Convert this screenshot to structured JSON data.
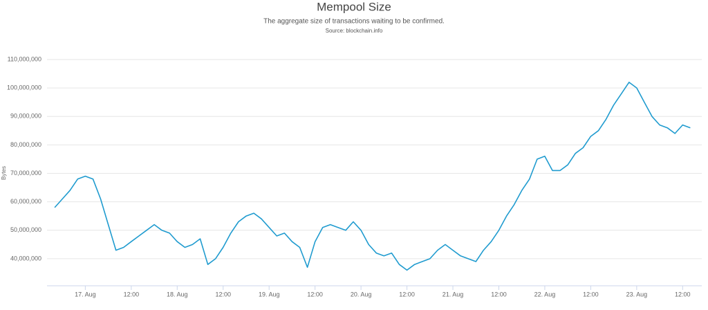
{
  "chart_data": {
    "type": "line",
    "title": "Mempool Size",
    "subtitle": "The aggregate size of transactions waiting to be confirmed.",
    "source": "Source: blockchain.info",
    "ylabel": "Bytes",
    "color": "#1f9bcf",
    "grid": true,
    "x": [
      "16. Aug 16:00",
      "16. Aug 18:00",
      "16. Aug 20:00",
      "16. Aug 22:00",
      "17. Aug 00:00",
      "17. Aug 02:00",
      "17. Aug 04:00",
      "17. Aug 06:00",
      "17. Aug 08:00",
      "17. Aug 10:00",
      "17. Aug 12:00",
      "17. Aug 14:00",
      "17. Aug 16:00",
      "17. Aug 18:00",
      "17. Aug 20:00",
      "17. Aug 22:00",
      "18. Aug 00:00",
      "18. Aug 02:00",
      "18. Aug 04:00",
      "18. Aug 06:00",
      "18. Aug 08:00",
      "18. Aug 10:00",
      "18. Aug 12:00",
      "18. Aug 14:00",
      "18. Aug 16:00",
      "18. Aug 18:00",
      "18. Aug 20:00",
      "18. Aug 22:00",
      "19. Aug 00:00",
      "19. Aug 02:00",
      "19. Aug 04:00",
      "19. Aug 06:00",
      "19. Aug 08:00",
      "19. Aug 10:00",
      "19. Aug 12:00",
      "19. Aug 14:00",
      "19. Aug 16:00",
      "19. Aug 18:00",
      "19. Aug 20:00",
      "19. Aug 22:00",
      "20. Aug 00:00",
      "20. Aug 02:00",
      "20. Aug 04:00",
      "20. Aug 06:00",
      "20. Aug 08:00",
      "20. Aug 10:00",
      "20. Aug 12:00",
      "20. Aug 14:00",
      "20. Aug 16:00",
      "20. Aug 18:00",
      "20. Aug 20:00",
      "20. Aug 22:00",
      "21. Aug 00:00",
      "21. Aug 02:00",
      "21. Aug 04:00",
      "21. Aug 06:00",
      "21. Aug 08:00",
      "21. Aug 10:00",
      "21. Aug 12:00",
      "21. Aug 14:00",
      "21. Aug 16:00",
      "21. Aug 18:00",
      "21. Aug 20:00",
      "21. Aug 22:00",
      "22. Aug 00:00",
      "22. Aug 02:00",
      "22. Aug 04:00",
      "22. Aug 06:00",
      "22. Aug 08:00",
      "22. Aug 10:00",
      "22. Aug 12:00",
      "22. Aug 14:00",
      "22. Aug 16:00",
      "22. Aug 18:00",
      "22. Aug 20:00",
      "22. Aug 22:00",
      "23. Aug 00:00",
      "23. Aug 02:00",
      "23. Aug 04:00",
      "23. Aug 06:00",
      "23. Aug 08:00",
      "23. Aug 10:00",
      "23. Aug 12:00",
      "23. Aug 14:00"
    ],
    "values": [
      58000000,
      61000000,
      64000000,
      68000000,
      69000000,
      68000000,
      61000000,
      52000000,
      43000000,
      44000000,
      46000000,
      48000000,
      50000000,
      52000000,
      50000000,
      49000000,
      46000000,
      44000000,
      45000000,
      47000000,
      38000000,
      40000000,
      44000000,
      49000000,
      53000000,
      55000000,
      56000000,
      54000000,
      51000000,
      48000000,
      49000000,
      46000000,
      44000000,
      37000000,
      46000000,
      51000000,
      52000000,
      51000000,
      50000000,
      53000000,
      50000000,
      45000000,
      42000000,
      41000000,
      42000000,
      38000000,
      36000000,
      38000000,
      39000000,
      40000000,
      43000000,
      45000000,
      43000000,
      41000000,
      40000000,
      39000000,
      43000000,
      46000000,
      50000000,
      55000000,
      59000000,
      64000000,
      68000000,
      75000000,
      76000000,
      71000000,
      71000000,
      73000000,
      77000000,
      79000000,
      83000000,
      85000000,
      89000000,
      94000000,
      98000000,
      102000000,
      100000000,
      95000000,
      90000000,
      87000000,
      86000000,
      84000000,
      87000000,
      86000000
    ],
    "xlim": [
      "16. Aug 14:00",
      "23. Aug 17:00"
    ],
    "xticks": [
      {
        "value": "17. Aug 00:00",
        "label": "17. Aug"
      },
      {
        "value": "17. Aug 12:00",
        "label": "12:00"
      },
      {
        "value": "18. Aug 00:00",
        "label": "18. Aug"
      },
      {
        "value": "18. Aug 12:00",
        "label": "12:00"
      },
      {
        "value": "19. Aug 00:00",
        "label": "19. Aug"
      },
      {
        "value": "19. Aug 12:00",
        "label": "12:00"
      },
      {
        "value": "20. Aug 00:00",
        "label": "20. Aug"
      },
      {
        "value": "20. Aug 12:00",
        "label": "12:00"
      },
      {
        "value": "21. Aug 00:00",
        "label": "21. Aug"
      },
      {
        "value": "21. Aug 12:00",
        "label": "12:00"
      },
      {
        "value": "22. Aug 00:00",
        "label": "22. Aug"
      },
      {
        "value": "22. Aug 12:00",
        "label": "12:00"
      },
      {
        "value": "23. Aug 00:00",
        "label": "23. Aug"
      },
      {
        "value": "23. Aug 12:00",
        "label": "12:00"
      }
    ],
    "ylim": [
      30500000,
      110000000
    ],
    "yticks": [
      {
        "value": 40000000,
        "label": "40,000,000"
      },
      {
        "value": 50000000,
        "label": "50,000,000"
      },
      {
        "value": 60000000,
        "label": "60,000,000"
      },
      {
        "value": 70000000,
        "label": "70,000,000"
      },
      {
        "value": 80000000,
        "label": "80,000,000"
      },
      {
        "value": 90000000,
        "label": "90,000,000"
      },
      {
        "value": 100000000,
        "label": "100,000,000"
      },
      {
        "value": 110000000,
        "label": "110,000,000"
      }
    ]
  }
}
